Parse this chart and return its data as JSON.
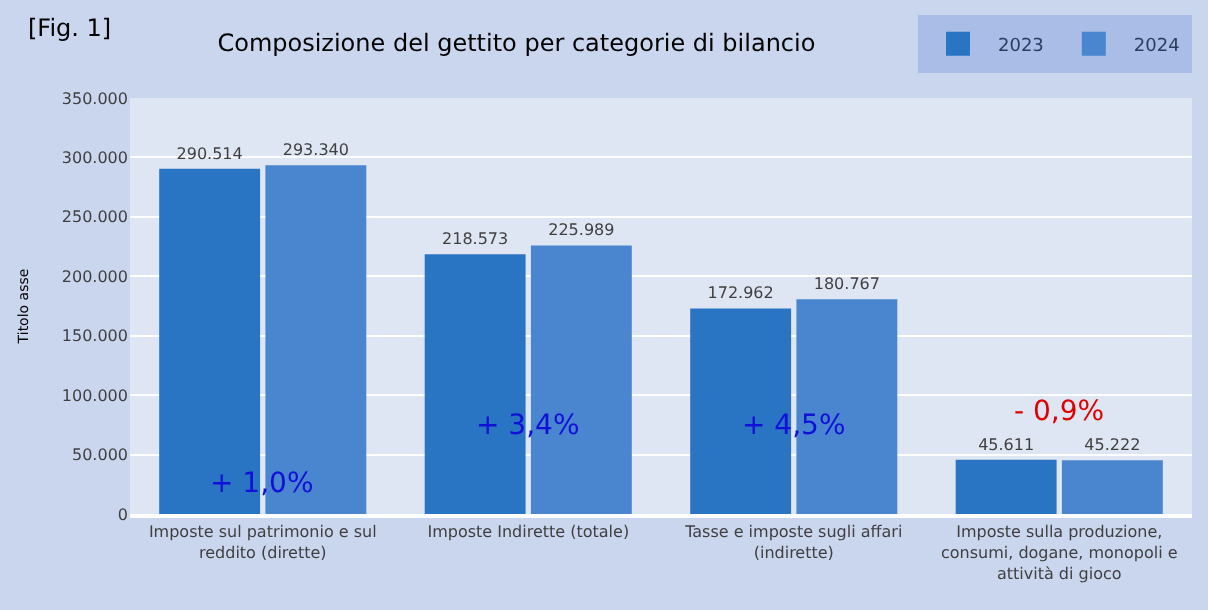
{
  "chart_data": {
    "type": "bar",
    "title": "Composizione del gettito per categorie di bilancio",
    "ylabel": "Titolo asse",
    "categories": [
      "Imposte sul patrimonio e sul reddito (dirette)",
      "Imposte Indirette (totale)",
      "Tasse e imposte sugli affari (indirette)",
      "Imposte sulla produzione, consumi, dogane, monopoli e attività di gioco"
    ],
    "series": [
      {
        "name": "2023",
        "color": "#2a74c4",
        "values": [
          290514,
          218573,
          172962,
          45611
        ],
        "value_labels": [
          "290.514",
          "218.573",
          "172.962",
          "45.611"
        ]
      },
      {
        "name": "2024",
        "color": "#4a86cf",
        "values": [
          293340,
          225989,
          180767,
          45222
        ],
        "value_labels": [
          "293.340",
          "225.989",
          "180.767",
          "45.222"
        ]
      }
    ],
    "ylim": [
      0,
      350000
    ],
    "yticks": [
      {
        "value": 0,
        "label": "0"
      },
      {
        "value": 50000,
        "label": "50.000"
      },
      {
        "value": 100000,
        "label": "100.000"
      },
      {
        "value": 150000,
        "label": "150.000"
      },
      {
        "value": 200000,
        "label": "200.000"
      },
      {
        "value": 250000,
        "label": "250.000"
      },
      {
        "value": 300000,
        "label": "300.000"
      },
      {
        "value": 350000,
        "label": "350.000"
      }
    ],
    "grid": "y",
    "legend": "top right",
    "annotations": [
      "[Fig. 1]",
      "+ 1,0%",
      "+ 3,4%",
      "+ 4,5%",
      "- 0,9%"
    ]
  }
}
